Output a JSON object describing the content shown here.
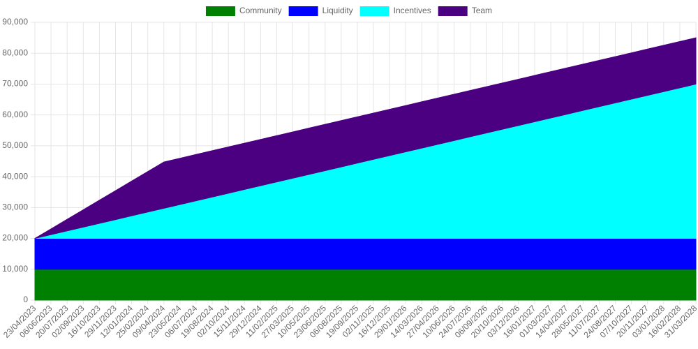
{
  "chart_data": {
    "type": "area",
    "stacked": true,
    "categories": [
      "23/04/2023",
      "06/06/2023",
      "20/07/2023",
      "02/09/2023",
      "16/10/2023",
      "29/11/2023",
      "12/01/2024",
      "25/02/2024",
      "09/04/2024",
      "23/05/2024",
      "06/07/2024",
      "19/08/2024",
      "02/10/2024",
      "15/11/2024",
      "29/12/2024",
      "11/02/2025",
      "27/03/2025",
      "10/05/2025",
      "23/06/2025",
      "06/08/2025",
      "19/09/2025",
      "02/11/2025",
      "16/12/2025",
      "29/01/2026",
      "14/03/2026",
      "27/04/2026",
      "10/06/2026",
      "24/07/2026",
      "06/09/2026",
      "20/10/2026",
      "03/12/2026",
      "16/01/2027",
      "01/03/2027",
      "14/04/2027",
      "28/05/2027",
      "11/07/2027",
      "24/08/2027",
      "07/10/2027",
      "20/11/2027",
      "03/01/2028",
      "16/02/2028",
      "31/03/2028"
    ],
    "series": [
      {
        "name": "Community",
        "color": "#008000",
        "values": [
          10000,
          10000,
          10000,
          10000,
          10000,
          10000,
          10000,
          10000,
          10000,
          10000,
          10000,
          10000,
          10000,
          10000,
          10000,
          10000,
          10000,
          10000,
          10000,
          10000,
          10000,
          10000,
          10000,
          10000,
          10000,
          10000,
          10000,
          10000,
          10000,
          10000,
          10000,
          10000,
          10000,
          10000,
          10000,
          10000,
          10000,
          10000,
          10000,
          10000,
          10000,
          10000
        ]
      },
      {
        "name": "Liquidity",
        "color": "#0000ff",
        "values": [
          10000,
          10000,
          10000,
          10000,
          10000,
          10000,
          10000,
          10000,
          10000,
          10000,
          10000,
          10000,
          10000,
          10000,
          10000,
          10000,
          10000,
          10000,
          10000,
          10000,
          10000,
          10000,
          10000,
          10000,
          10000,
          10000,
          10000,
          10000,
          10000,
          10000,
          10000,
          10000,
          10000,
          10000,
          10000,
          10000,
          10000,
          10000,
          10000,
          10000,
          10000,
          10000
        ]
      },
      {
        "name": "Incentives",
        "color": "#00ffff",
        "values": [
          0,
          1220,
          2439,
          3659,
          4878,
          6098,
          7317,
          8537,
          9756,
          10976,
          12195,
          13415,
          14634,
          15854,
          17073,
          18293,
          19512,
          20732,
          21951,
          23171,
          24390,
          25610,
          26829,
          28049,
          29268,
          30488,
          31707,
          32927,
          34146,
          35366,
          36585,
          37805,
          39024,
          40244,
          41463,
          42683,
          43902,
          45122,
          46341,
          47561,
          48780,
          50000
        ]
      },
      {
        "name": "Team",
        "color": "#4b0082",
        "values": [
          0,
          1875,
          3750,
          5625,
          7500,
          9375,
          11250,
          13125,
          15000,
          15000,
          15000,
          15000,
          15000,
          15000,
          15000,
          15000,
          15000,
          15000,
          15000,
          15000,
          15000,
          15000,
          15000,
          15000,
          15000,
          15000,
          15000,
          15000,
          15000,
          15000,
          15000,
          15000,
          15000,
          15000,
          15000,
          15000,
          15000,
          15000,
          15000,
          15000,
          15000,
          15000
        ]
      }
    ],
    "ylim": [
      0,
      90000
    ],
    "yticks": [
      0,
      {
        "value": 10000,
        "label": "10,000"
      },
      {
        "value": 20000,
        "label": "20,000"
      },
      {
        "value": 30000,
        "label": "30,000"
      },
      {
        "value": 40000,
        "label": "40,000"
      },
      {
        "value": 50000,
        "label": "50,000"
      },
      {
        "value": 60000,
        "label": "60,000"
      },
      {
        "value": 70000,
        "label": "70,000"
      },
      {
        "value": 80000,
        "label": "80,000"
      },
      {
        "value": 90000,
        "label": "90,000"
      }
    ],
    "grid": true,
    "legend": "top"
  }
}
